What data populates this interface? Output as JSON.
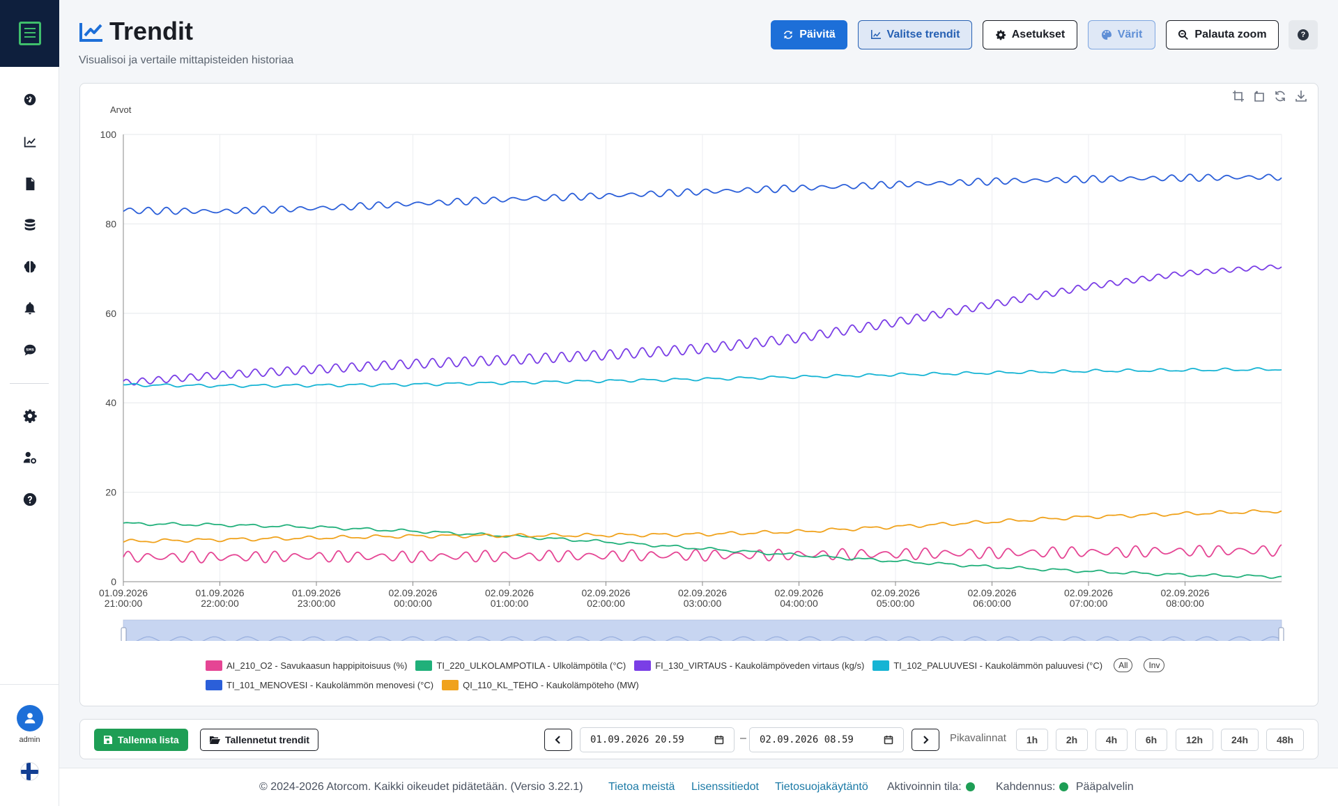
{
  "sidebar": {
    "user": "admin",
    "items": [
      {
        "icon": "dashboard-icon"
      },
      {
        "icon": "chart-line-icon"
      },
      {
        "icon": "document-icon"
      },
      {
        "icon": "database-icon"
      },
      {
        "icon": "brain-icon"
      },
      {
        "icon": "bell-icon"
      },
      {
        "icon": "sms-icon"
      },
      {
        "icon": "gear-icon"
      },
      {
        "icon": "user-settings-icon"
      },
      {
        "icon": "help-icon"
      }
    ]
  },
  "header": {
    "title": "Trendit",
    "subtitle": "Visualisoi ja vertaile mittapisteiden historiaa",
    "buttons": {
      "refresh": "Päivitä",
      "select": "Valitse trendit",
      "settings": "Asetukset",
      "colors": "Värit",
      "reset_zoom": "Palauta zoom",
      "help": "?"
    }
  },
  "chart_data": {
    "type": "line",
    "ylabel": "Arvot",
    "ylim": [
      0,
      100
    ],
    "yticks": [
      0,
      20,
      40,
      60,
      80,
      100
    ],
    "xticks": [
      [
        "01.09.2026",
        "21:00:00"
      ],
      [
        "01.09.2026",
        "22:00:00"
      ],
      [
        "01.09.2026",
        "23:00:00"
      ],
      [
        "02.09.2026",
        "00:00:00"
      ],
      [
        "02.09.2026",
        "01:00:00"
      ],
      [
        "02.09.2026",
        "02:00:00"
      ],
      [
        "02.09.2026",
        "03:00:00"
      ],
      [
        "02.09.2026",
        "04:00:00"
      ],
      [
        "02.09.2026",
        "05:00:00"
      ],
      [
        "02.09.2026",
        "06:00:00"
      ],
      [
        "02.09.2026",
        "07:00:00"
      ],
      [
        "02.09.2026",
        "08:00:00"
      ]
    ],
    "x_hours": [
      0,
      1,
      2,
      3,
      4,
      5,
      6,
      7,
      8,
      9,
      10,
      11,
      12
    ],
    "grid": true,
    "series": [
      {
        "name": "AI_210_O2 - Savukaasun happipitoisuus (%)",
        "color": "#e54594",
        "values": [
          5.5,
          5.5,
          5.6,
          5.6,
          5.7,
          5.8,
          5.9,
          6.0,
          6.2,
          6.4,
          6.6,
          6.8,
          7.0
        ]
      },
      {
        "name": "TI_220_ULKOLAMPOTILA - Ulkolämpötila (°C)",
        "color": "#20b07a",
        "values": [
          13.0,
          12.7,
          12.2,
          11.3,
          10.2,
          8.9,
          7.4,
          5.9,
          4.6,
          3.3,
          2.3,
          1.5,
          1.1
        ]
      },
      {
        "name": "FI_130_VIRTAUS - Kaukolämpöveden virtaus (kg/s)",
        "color": "#7a3ee6",
        "values": [
          44.5,
          46.2,
          47.5,
          48.7,
          49.6,
          50.7,
          52.1,
          54.5,
          58.0,
          62.0,
          66.0,
          69.0,
          70.5
        ]
      },
      {
        "name": "TI_102_PALUUVESI - Kaukolämmön paluuvesi (°C)",
        "color": "#16b4d4",
        "values": [
          44.0,
          43.8,
          43.9,
          44.1,
          44.5,
          44.9,
          45.3,
          45.8,
          46.3,
          46.7,
          47.1,
          47.3,
          47.5
        ]
      },
      {
        "name": "TI_101_MENOVESI - Kaukolämmön menovesi (°C)",
        "color": "#2b5fd9",
        "values": [
          83.0,
          82.8,
          83.5,
          84.5,
          85.5,
          86.3,
          87.2,
          88.0,
          88.8,
          89.5,
          90.0,
          90.3,
          90.5
        ]
      },
      {
        "name": "QI_110_KL_TEHO - Kaukolämpöteho (MW)",
        "color": "#f0a21c",
        "values": [
          9.0,
          9.4,
          9.8,
          10.2,
          10.3,
          10.4,
          10.6,
          11.2,
          12.3,
          13.4,
          14.5,
          15.2,
          15.8
        ]
      }
    ],
    "legend_controls": {
      "all": "All",
      "inv": "Inv"
    }
  },
  "bottom_bar": {
    "save_list": "Tallenna lista",
    "saved_trends": "Tallennetut trendit",
    "start_date": "01.09.2026 20.59",
    "end_date": "02.09.2026 08.59",
    "separator": "–",
    "quick_label": "Pikavalinnat",
    "quick_options": [
      "1h",
      "2h",
      "4h",
      "6h",
      "12h",
      "24h",
      "48h"
    ]
  },
  "footer": {
    "copyright": "© 2024-2026 Atorcom. Kaikki oikeudet pidätetään. (Versio 3.22.1)",
    "about": "Tietoa meistä",
    "licenses": "Lisenssitiedot",
    "privacy": "Tietosuojakäytäntö",
    "activation_label": "Aktivoinnin tila:",
    "redundancy_label": "Kahdennus:",
    "server": "Pääpalvelin",
    "status_color": "#1e9e55"
  }
}
